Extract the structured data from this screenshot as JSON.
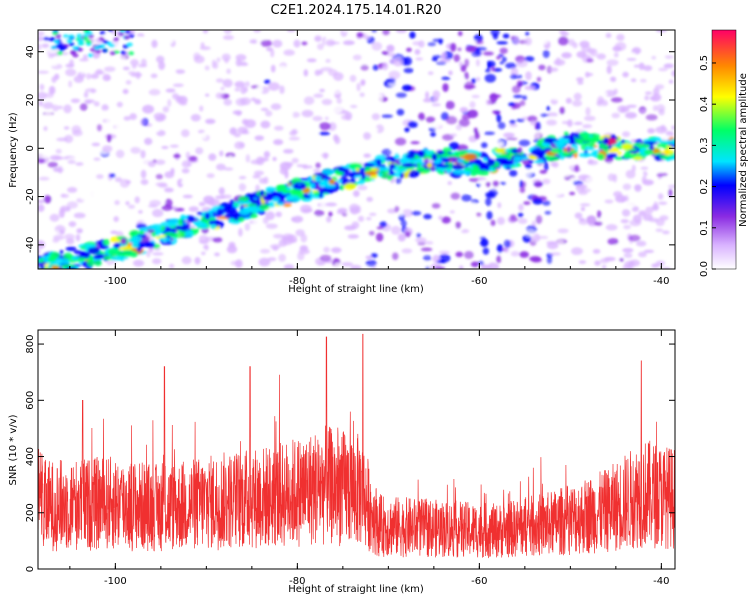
{
  "title": "C2E1.2024.175.14.01.R20",
  "colors": {
    "snr_line": "#f03030",
    "colormap": [
      "#ffffff",
      "#d9b3ff",
      "#8a2be2",
      "#0000ff",
      "#00e5ff",
      "#00ff66",
      "#ffff00",
      "#ff8800",
      "#ff0066"
    ]
  },
  "chart_data": [
    {
      "type": "heatmap",
      "xlabel": "Height of straight line (km)",
      "ylabel": "Frequency (Hz)",
      "xlim": [
        -108.5,
        -38.5
      ],
      "ylim": [
        -50,
        49
      ],
      "x_ticks": [
        -100,
        -80,
        -60,
        -40
      ],
      "y_ticks": [
        -40,
        -20,
        0,
        20,
        40
      ],
      "colorbar": {
        "label": "Normalized spectral amplitude",
        "range": [
          0,
          0.58
        ],
        "ticks": [
          "0.0",
          "0.1",
          "0.2",
          "0.3",
          "0.4",
          "0.5"
        ]
      },
      "ridge": [
        {
          "x": -107,
          "y": -48
        },
        {
          "x": -100,
          "y": -42
        },
        {
          "x": -95,
          "y": -36
        },
        {
          "x": -90,
          "y": -30
        },
        {
          "x": -85,
          "y": -24
        },
        {
          "x": -80,
          "y": -18
        },
        {
          "x": -75,
          "y": -12
        },
        {
          "x": -70,
          "y": -8
        },
        {
          "x": -65,
          "y": -5
        },
        {
          "x": -60,
          "y": -6
        },
        {
          "x": -55,
          "y": -4
        },
        {
          "x": -50,
          "y": 2
        },
        {
          "x": -45,
          "y": 0
        },
        {
          "x": -40,
          "y": 0
        }
      ]
    },
    {
      "type": "line",
      "xlabel": "Height of straight line (km)",
      "ylabel": "SNR (10 * v/v)",
      "xlim": [
        -108.5,
        -38.5
      ],
      "ylim": [
        0,
        850
      ],
      "x_ticks": [
        -100,
        -80,
        -60,
        -40
      ],
      "y_ticks": [
        0,
        200,
        400,
        600,
        800
      ],
      "series_color": "#f03030",
      "envelope": [
        {
          "x": -108,
          "y": 250
        },
        {
          "x": -100,
          "y": 260
        },
        {
          "x": -95,
          "y": 240
        },
        {
          "x": -88,
          "y": 270
        },
        {
          "x": -82,
          "y": 290
        },
        {
          "x": -77,
          "y": 330
        },
        {
          "x": -73,
          "y": 310
        },
        {
          "x": -71,
          "y": 170
        },
        {
          "x": -65,
          "y": 160
        },
        {
          "x": -58,
          "y": 150
        },
        {
          "x": -52,
          "y": 180
        },
        {
          "x": -46,
          "y": 230
        },
        {
          "x": -42,
          "y": 300
        },
        {
          "x": -38.5,
          "y": 280
        }
      ],
      "peaks": [
        {
          "x": -76.8,
          "y": 825
        },
        {
          "x": -72.8,
          "y": 835
        },
        {
          "x": -42.2,
          "y": 740
        },
        {
          "x": -85.2,
          "y": 720
        },
        {
          "x": -94.6,
          "y": 720
        },
        {
          "x": -103.6,
          "y": 600
        }
      ]
    }
  ]
}
